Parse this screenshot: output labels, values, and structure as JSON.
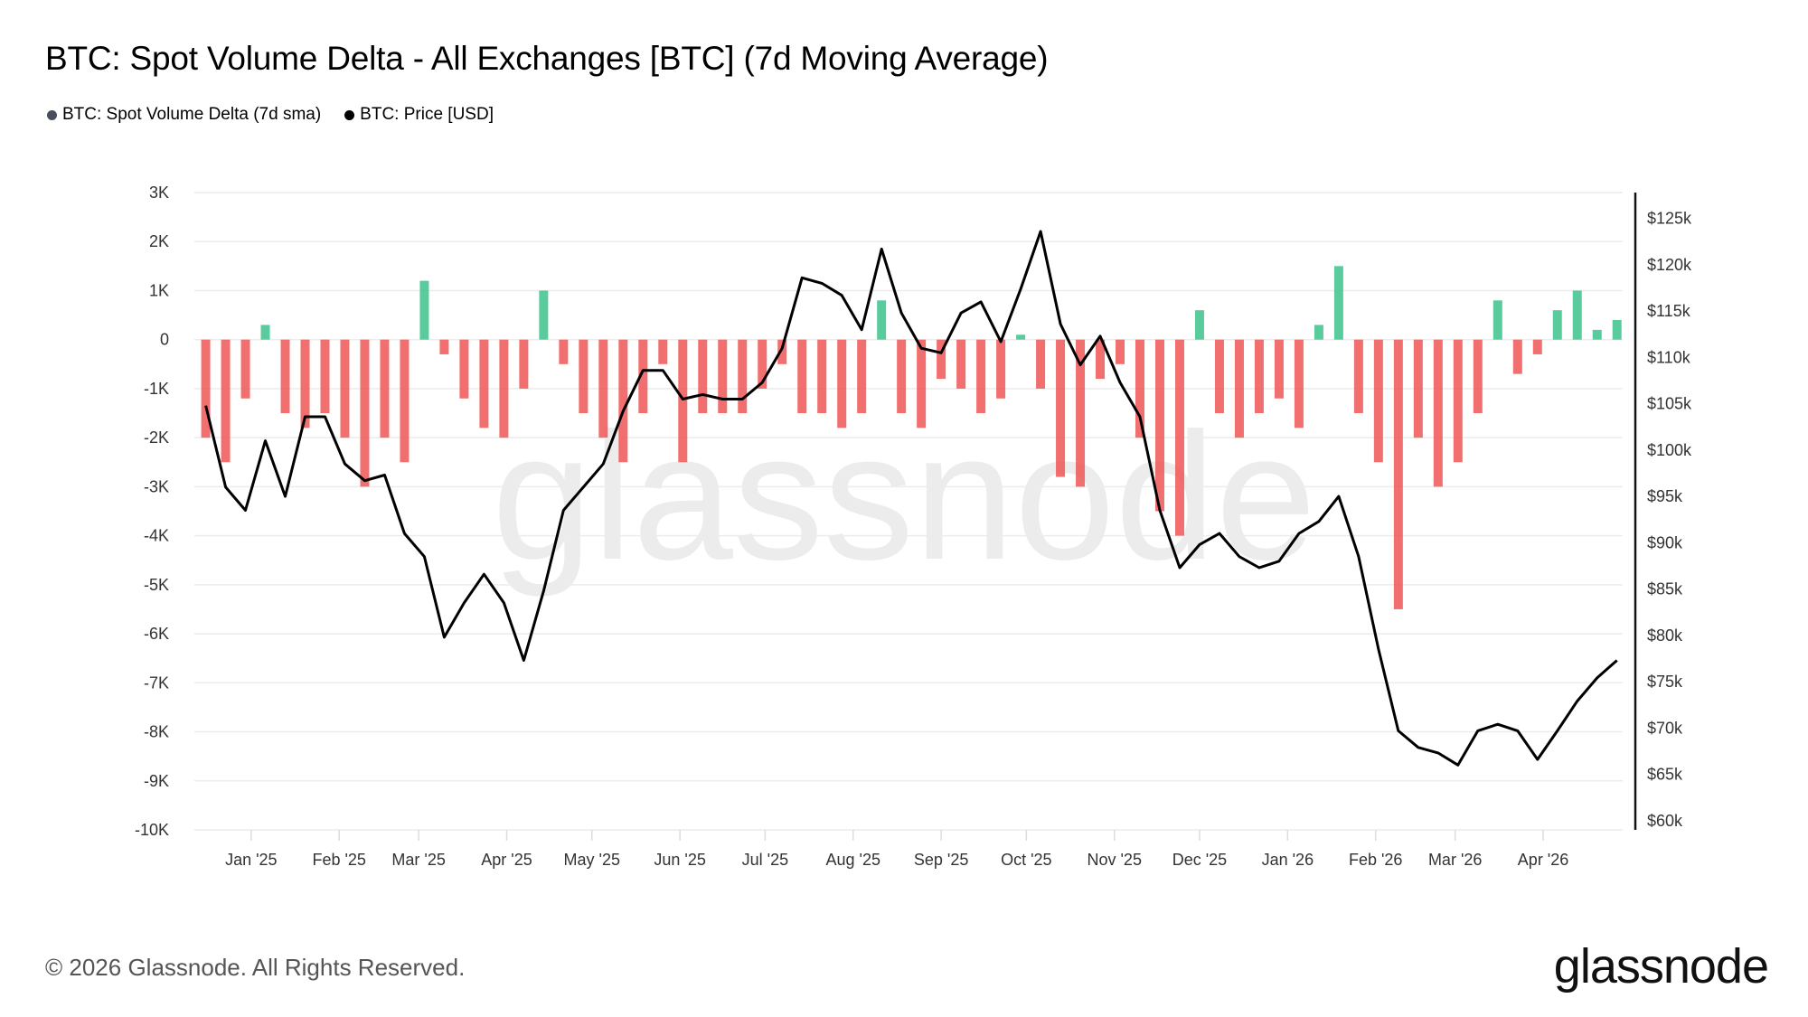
{
  "title": "BTC: Spot Volume Delta - All Exchanges [BTC] (7d Moving Average)",
  "legend": [
    {
      "label": "BTC: Spot Volume Delta (7d sma)",
      "color": "#4a4e5a"
    },
    {
      "label": "BTC: Price [USD]",
      "color": "#000000"
    }
  ],
  "footer": "© 2026 Glassnode. All Rights Reserved.",
  "logo": "glassnode",
  "watermark": "glassnode",
  "chart_data": {
    "type": "bar+line",
    "title": "BTC: Spot Volume Delta - All Exchanges [BTC] (7d Moving Average)",
    "x_range": [
      "2024-12-12",
      "2026-04-29"
    ],
    "x_ticks": [
      "Jan '25",
      "Feb '25",
      "Mar '25",
      "Apr '25",
      "May '25",
      "Jun '25",
      "Jul '25",
      "Aug '25",
      "Sep '25",
      "Oct '25",
      "Nov '25",
      "Dec '25",
      "Jan '26",
      "Feb '26",
      "Mar '26",
      "Apr '26"
    ],
    "y_left": {
      "range": [
        -10000,
        3000
      ],
      "ticks": [
        "3K",
        "2K",
        "1K",
        "0",
        "-1K",
        "-2K",
        "-3K",
        "-4K",
        "-5K",
        "-6K",
        "-7K",
        "-8K",
        "-9K",
        "-10K"
      ]
    },
    "y_right": {
      "range": [
        59000,
        127800
      ],
      "ticks": [
        "$125k",
        "$120k",
        "$115k",
        "$110k",
        "$105k",
        "$100k",
        "$95k",
        "$90k",
        "$85k",
        "$80k",
        "$75k",
        "$70k",
        "$65k",
        "$60k"
      ]
    },
    "grid": true,
    "legend_placement": "top-left",
    "colors": {
      "positive": "#3cc28b",
      "negative": "#f05656",
      "price": "#000000"
    },
    "dates_start": "2024-12-16",
    "interval_days": 7,
    "series": [
      {
        "name": "BTC: Spot Volume Delta (7d sma)",
        "axis": "left",
        "kind": "bar",
        "values": [
          -2000,
          -2500,
          -1200,
          300,
          -1500,
          -1800,
          -1500,
          -2000,
          -3000,
          -2000,
          -2500,
          1200,
          -300,
          -1200,
          -1800,
          -2000,
          -1000,
          1000,
          -500,
          -1500,
          -2000,
          -2500,
          -1500,
          -500,
          -2500,
          -1500,
          -1500,
          -1500,
          -1000,
          -500,
          -1500,
          -1500,
          -1800,
          -1500,
          800,
          -1500,
          -1800,
          -800,
          -1000,
          -1500,
          -1200,
          100,
          -1000,
          -2800,
          -3000,
          -800,
          -500,
          -2000,
          -3500,
          -4000,
          600,
          -1500,
          -2000,
          -1500,
          -1200,
          -1800,
          300,
          1500,
          -1500,
          -2500,
          -5500,
          -2000,
          -3000,
          -2500,
          -1500,
          800,
          -700,
          -300,
          600,
          1000,
          200,
          400
        ]
      },
      {
        "name": "BTC: Price [USD]",
        "axis": "right",
        "kind": "line",
        "values": [
          104800,
          96000,
          93500,
          101000,
          95000,
          103600,
          103600,
          98500,
          96700,
          97300,
          91000,
          88500,
          79800,
          83500,
          86600,
          83500,
          77300,
          84800,
          93500,
          96000,
          98500,
          104200,
          108600,
          108600,
          105500,
          106000,
          105500,
          105500,
          107300,
          111000,
          118600,
          118000,
          116700,
          113000,
          121700,
          114800,
          111000,
          110500,
          114800,
          116000,
          111700,
          117400,
          123600,
          113600,
          109200,
          112300,
          107300,
          103600,
          93500,
          87300,
          89800,
          91000,
          88500,
          87300,
          88000,
          91000,
          92300,
          95000,
          88500,
          78500,
          69700,
          67900,
          67300,
          66000,
          69700,
          70400,
          69700,
          66600,
          69700,
          72900,
          75400,
          77300
        ]
      }
    ]
  }
}
